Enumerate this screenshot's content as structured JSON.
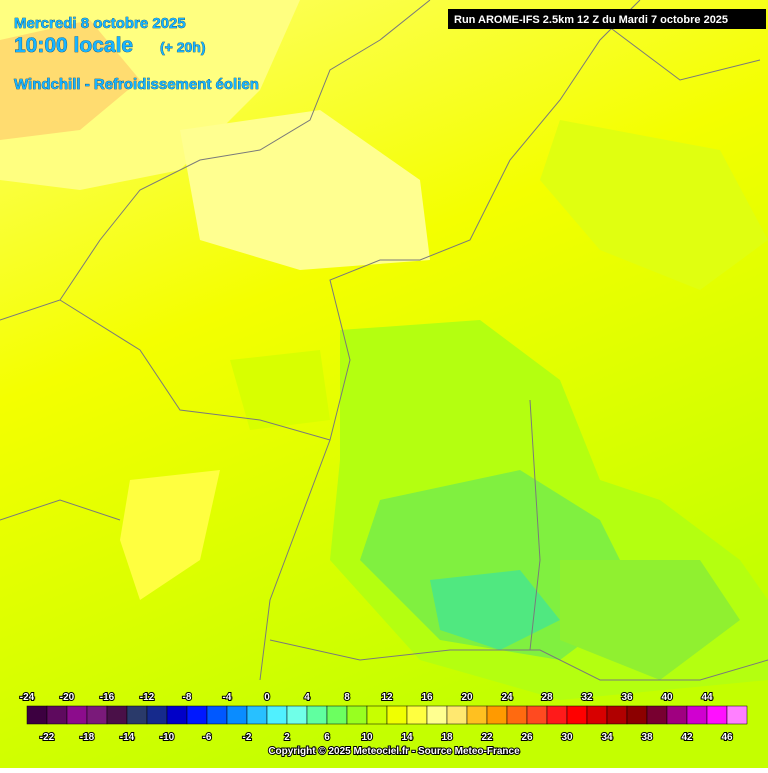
{
  "header": {
    "date": "Mercredi 8 octobre 2025",
    "time": "10:00 locale",
    "offset": "(+ 20h)",
    "parameter": "Windchill - Refroidissement éolien",
    "run": "Run AROME-IFS 2.5km 12 Z du Mardi 7 octobre 2025"
  },
  "legend": {
    "top_labels": [
      -24,
      -20,
      -16,
      -12,
      -8,
      -4,
      0,
      4,
      8,
      12,
      16,
      20,
      24,
      28,
      32,
      36,
      40,
      44
    ],
    "bottom_labels": [
      -22,
      -18,
      -14,
      -10,
      -6,
      -2,
      2,
      6,
      10,
      14,
      18,
      22,
      26,
      30,
      34,
      38,
      42,
      46
    ],
    "colors": [
      "#3c0040",
      "#5e0a5e",
      "#8c0c8c",
      "#7a1a7a",
      "#4a1048",
      "#2a3a6a",
      "#162a8c",
      "#0000c8",
      "#0018ff",
      "#0058ff",
      "#0a8cff",
      "#28c0ff",
      "#50f0ff",
      "#70ffe8",
      "#60ffa0",
      "#6cff60",
      "#98ff20",
      "#c8ff00",
      "#f0ff00",
      "#ffff40",
      "#ffff90",
      "#ffe870",
      "#ffc020",
      "#ff9a00",
      "#ff6a10",
      "#ff4a20",
      "#ff1a1a",
      "#ff0000",
      "#d80000",
      "#b00000",
      "#8c0000",
      "#780030",
      "#a00080",
      "#d000d0",
      "#ff10ff",
      "#ff80ff"
    ]
  },
  "footer": "Copyright © 2025 Meteociel.fr - Source Meteo-France"
}
